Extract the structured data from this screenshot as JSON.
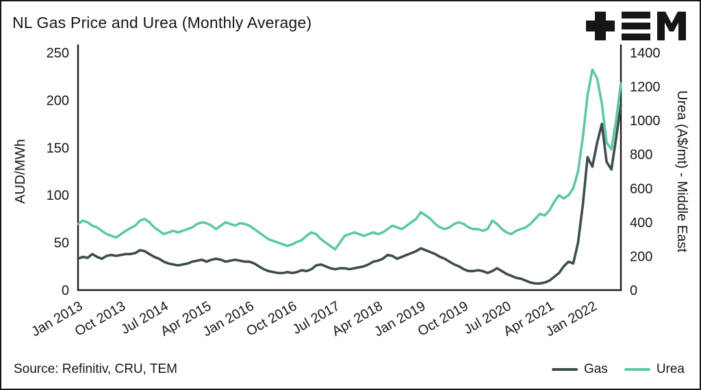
{
  "title": "NL Gas Price and Urea (Monthly Average)",
  "source": "Source: Refinitiv, CRU, TEM",
  "logo": {
    "name": "tem-logo",
    "brand": "TEM",
    "color": "#161616"
  },
  "legend": [
    {
      "label": "Gas",
      "color": "#3d4b4f"
    },
    {
      "label": "Urea",
      "color": "#5cc8a2"
    }
  ],
  "chart_data": {
    "type": "line",
    "title": "NL Gas Price and Urea (Monthly Average)",
    "x_start": "Jan 2013",
    "x_tick_interval_months": 9,
    "x_tick_labels": [
      "Jan 2013",
      "Oct 2013",
      "Jul 2014",
      "Apr 2015",
      "Jan 2016",
      "Oct 2016",
      "Jul 2017",
      "Apr 2018",
      "Jan 2019",
      "Oct 2019",
      "Jul 2020",
      "Apr 2021",
      "Jan 2022"
    ],
    "left_axis": {
      "label": "AUD/MWh",
      "ticks": [
        0,
        50,
        100,
        150,
        200,
        250
      ],
      "range": [
        0,
        250
      ]
    },
    "right_axis": {
      "label": "Urea (A$/mt) - Middle East",
      "ticks": [
        0,
        200,
        400,
        600,
        800,
        1000,
        1200,
        1400
      ],
      "range": [
        0,
        1400
      ]
    },
    "grid": false,
    "legend_position": "bottom-right",
    "series": [
      {
        "name": "Gas",
        "axis": "left",
        "color": "#3d4b4f",
        "values": [
          33,
          35,
          34,
          38,
          35,
          33,
          36,
          37,
          36,
          37,
          38,
          38,
          39,
          42,
          41,
          38,
          35,
          33,
          30,
          28,
          27,
          26,
          27,
          28,
          30,
          31,
          32,
          30,
          32,
          33,
          32,
          30,
          31,
          32,
          31,
          30,
          30,
          28,
          25,
          22,
          20,
          19,
          18,
          18,
          19,
          18,
          19,
          21,
          20,
          22,
          26,
          27,
          25,
          23,
          22,
          23,
          23,
          22,
          23,
          24,
          25,
          27,
          30,
          31,
          33,
          37,
          36,
          33,
          35,
          37,
          39,
          41,
          44,
          42,
          40,
          38,
          35,
          33,
          30,
          27,
          25,
          22,
          20,
          20,
          21,
          20,
          18,
          20,
          23,
          20,
          17,
          15,
          13,
          12,
          10,
          8,
          7,
          7,
          8,
          10,
          14,
          18,
          25,
          30,
          28,
          50,
          90,
          140,
          130,
          155,
          175,
          135,
          127,
          160,
          195
        ]
      },
      {
        "name": "Urea",
        "axis": "right",
        "color": "#5cc8a2",
        "values": [
          390,
          410,
          400,
          380,
          370,
          350,
          330,
          320,
          310,
          330,
          350,
          365,
          380,
          410,
          420,
          400,
          370,
          350,
          330,
          340,
          350,
          340,
          350,
          360,
          370,
          390,
          400,
          395,
          380,
          360,
          380,
          400,
          390,
          380,
          395,
          390,
          380,
          360,
          340,
          320,
          300,
          290,
          280,
          270,
          260,
          270,
          285,
          295,
          320,
          340,
          330,
          300,
          280,
          260,
          240,
          280,
          320,
          330,
          340,
          330,
          320,
          330,
          340,
          330,
          340,
          360,
          380,
          370,
          360,
          380,
          400,
          420,
          460,
          440,
          420,
          390,
          370,
          360,
          370,
          390,
          400,
          390,
          370,
          360,
          360,
          350,
          360,
          410,
          390,
          360,
          340,
          330,
          350,
          360,
          370,
          390,
          420,
          450,
          440,
          470,
          520,
          560,
          540,
          560,
          600,
          700,
          900,
          1150,
          1300,
          1250,
          1100,
          870,
          830,
          1000,
          1220
        ]
      }
    ]
  }
}
